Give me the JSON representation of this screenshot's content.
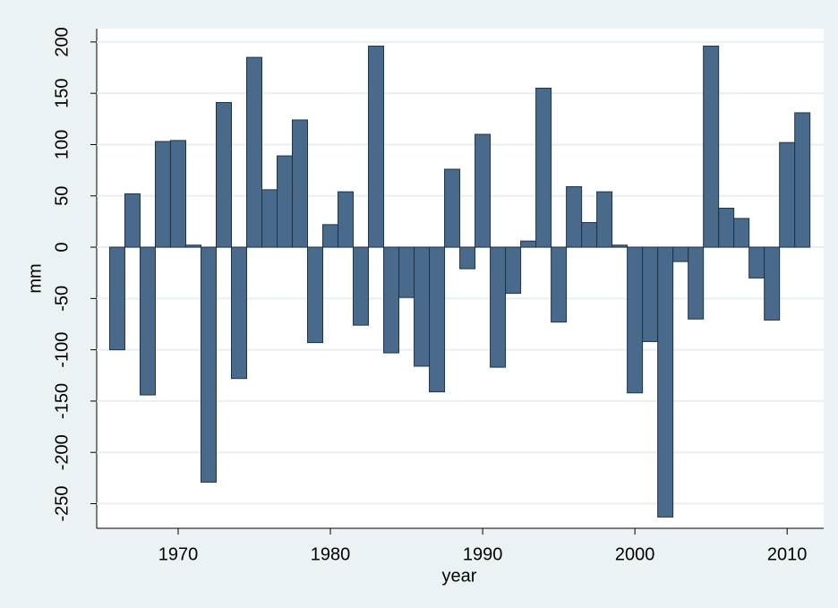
{
  "chart_data": {
    "type": "bar",
    "x_label": "year",
    "y_label": "mm",
    "x": [
      1966,
      1967,
      1968,
      1969,
      1970,
      1971,
      1972,
      1973,
      1974,
      1975,
      1976,
      1977,
      1978,
      1979,
      1980,
      1981,
      1982,
      1983,
      1984,
      1985,
      1986,
      1987,
      1988,
      1989,
      1990,
      1991,
      1992,
      1993,
      1994,
      1995,
      1996,
      1997,
      1998,
      1999,
      2000,
      2001,
      2002,
      2003,
      2004,
      2005,
      2006,
      2007,
      2008,
      2009,
      2010,
      2011
    ],
    "values": [
      -100,
      52,
      -144,
      103,
      104,
      2,
      -229,
      141,
      -128,
      185,
      56,
      89,
      124,
      -93,
      22,
      54,
      -76,
      196,
      -103,
      -49,
      -116,
      -141,
      76,
      -21,
      110,
      -117,
      -45,
      6,
      155,
      -73,
      59,
      24,
      54,
      2,
      -142,
      -92,
      -263,
      -14,
      -70,
      196,
      38,
      28,
      -30,
      -71,
      102,
      131
    ],
    "color": "#4a6a8c",
    "xlim": [
      1964.65,
      2012.4
    ],
    "xticks": [
      1970,
      1980,
      1990,
      2000,
      2010
    ],
    "ylim": [
      -274,
      213
    ],
    "yticks": [
      -250,
      -200,
      -150,
      -100,
      -50,
      0,
      50,
      100,
      150,
      200
    ],
    "grid": true
  }
}
